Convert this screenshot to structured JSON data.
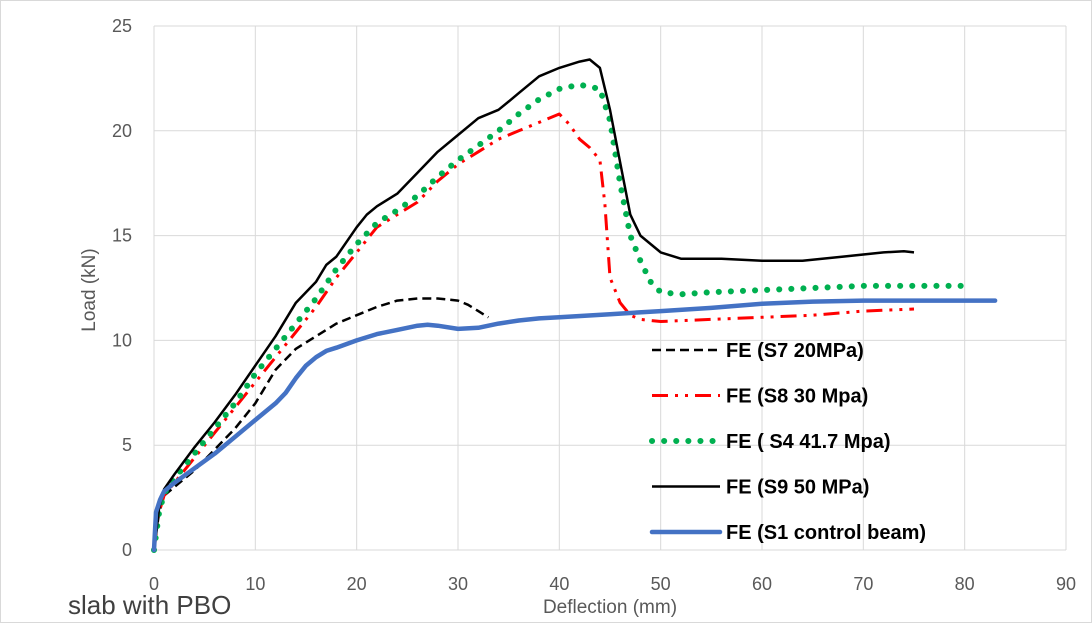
{
  "chart_data": {
    "type": "line",
    "title": "",
    "xlabel": "Deflection (mm)",
    "ylabel": "Load (kN)",
    "xlim": [
      0,
      90
    ],
    "ylim": [
      0,
      25
    ],
    "xticks": [
      0,
      10,
      20,
      30,
      40,
      50,
      60,
      70,
      80,
      90
    ],
    "yticks": [
      0,
      5,
      10,
      15,
      20,
      25
    ],
    "grid": true,
    "legend_position": "bottom-right",
    "annotation": "slab with PBO",
    "series": [
      {
        "name": "FE (S7 20MPa)",
        "color": "#000000",
        "dash": "dashed",
        "x": [
          0,
          0.5,
          1,
          2,
          4,
          6,
          8,
          10,
          12,
          14,
          16,
          18,
          20,
          22,
          24,
          26,
          28,
          30,
          31,
          32,
          33
        ],
        "y": [
          0,
          1.8,
          2.6,
          3.0,
          3.8,
          4.8,
          5.8,
          7.0,
          8.6,
          9.6,
          10.2,
          10.8,
          11.2,
          11.6,
          11.9,
          12.0,
          12.0,
          11.9,
          11.7,
          11.4,
          11.1
        ]
      },
      {
        "name": "FE (S8 30 Mpa)",
        "color": "#ff0000",
        "dash": "dash-dot-dot",
        "x": [
          0,
          0.5,
          1,
          2,
          4,
          6,
          8,
          10,
          12,
          14,
          16,
          18,
          20,
          22,
          24,
          26,
          28,
          30,
          32,
          34,
          36,
          38,
          40,
          41,
          42,
          43,
          44,
          44.5,
          45,
          46,
          47,
          48,
          50,
          55,
          60,
          65,
          70,
          75
        ],
        "y": [
          0,
          1.8,
          2.6,
          3.2,
          4.4,
          5.6,
          6.8,
          8.0,
          9.2,
          10.4,
          11.6,
          13.0,
          14.2,
          15.4,
          16.0,
          16.6,
          17.6,
          18.4,
          19.0,
          19.6,
          20.0,
          20.4,
          20.8,
          20.3,
          19.6,
          19.2,
          18.6,
          16.5,
          13.0,
          11.8,
          11.2,
          11.0,
          10.9,
          11.0,
          11.1,
          11.2,
          11.4,
          11.5
        ]
      },
      {
        "name": "FE ( S4 41.7 Mpa)",
        "color": "#00b050",
        "dash": "dotted",
        "x": [
          0,
          0.5,
          1,
          2,
          4,
          6,
          8,
          10,
          12,
          14,
          16,
          18,
          20,
          22,
          24,
          26,
          28,
          30,
          32,
          34,
          36,
          38,
          40,
          42,
          44,
          45,
          46,
          47,
          48,
          49,
          50,
          52,
          55,
          60,
          65,
          70,
          75,
          80
        ],
        "y": [
          0,
          1.8,
          2.7,
          3.4,
          4.6,
          5.8,
          7.0,
          8.4,
          9.6,
          10.8,
          12.0,
          13.4,
          14.6,
          15.6,
          16.2,
          16.9,
          17.8,
          18.6,
          19.3,
          20.0,
          20.8,
          21.5,
          22.0,
          22.2,
          22.0,
          20.5,
          17.5,
          15.0,
          13.8,
          12.8,
          12.3,
          12.2,
          12.3,
          12.4,
          12.5,
          12.6,
          12.6,
          12.6
        ]
      },
      {
        "name": "FE (S9 50 MPa)",
        "color": "#000000",
        "dash": "solid",
        "x": [
          0,
          0.5,
          1,
          2,
          4,
          6,
          8,
          10,
          12,
          14,
          16,
          17,
          18,
          20,
          21,
          22,
          24,
          26,
          28,
          30,
          32,
          34,
          35,
          36,
          38,
          40,
          42,
          43,
          44,
          45,
          46,
          47,
          48,
          50,
          52,
          56,
          60,
          64,
          68,
          72,
          74,
          75
        ],
        "y": [
          0,
          2.0,
          2.9,
          3.6,
          4.9,
          6.1,
          7.4,
          8.8,
          10.2,
          11.8,
          12.8,
          13.6,
          14.0,
          15.4,
          16.0,
          16.4,
          17.0,
          18.0,
          19.0,
          19.8,
          20.6,
          21.0,
          21.4,
          21.8,
          22.6,
          23.0,
          23.3,
          23.4,
          23.0,
          21.0,
          18.5,
          16.0,
          15.0,
          14.2,
          13.9,
          13.9,
          13.8,
          13.8,
          14.0,
          14.2,
          14.25,
          14.2
        ]
      },
      {
        "name": "FE (S1 control beam)",
        "color": "#4472c4",
        "dash": "solid-thick",
        "x": [
          0,
          0.2,
          0.6,
          1,
          2,
          4,
          6,
          8,
          10,
          12,
          13,
          14,
          15,
          16,
          17,
          18,
          20,
          22,
          24,
          26,
          27,
          28,
          30,
          32,
          34,
          36,
          38,
          40,
          45,
          50,
          55,
          60,
          65,
          70,
          75,
          80,
          83
        ],
        "y": [
          0,
          1.8,
          2.4,
          2.8,
          3.2,
          3.9,
          4.6,
          5.4,
          6.2,
          7.0,
          7.5,
          8.2,
          8.8,
          9.2,
          9.5,
          9.65,
          10.0,
          10.3,
          10.5,
          10.7,
          10.75,
          10.7,
          10.55,
          10.6,
          10.8,
          10.95,
          11.05,
          11.1,
          11.25,
          11.4,
          11.55,
          11.75,
          11.85,
          11.9,
          11.9,
          11.9,
          11.9
        ]
      }
    ]
  }
}
